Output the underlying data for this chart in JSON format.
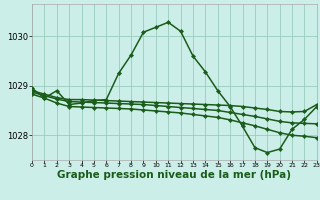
{
  "background_color": "#cceee8",
  "grid_color": "#99ccbb",
  "line_color": "#1a5c1a",
  "xlabel": "Graphe pression niveau de la mer (hPa)",
  "xlabel_fontsize": 7.5,
  "ylim": [
    1027.5,
    1030.65
  ],
  "xlim": [
    0,
    23
  ],
  "yticks": [
    1028,
    1029,
    1030
  ],
  "xticks": [
    0,
    1,
    2,
    3,
    4,
    5,
    6,
    7,
    8,
    9,
    10,
    11,
    12,
    13,
    14,
    15,
    16,
    17,
    18,
    19,
    20,
    21,
    22,
    23
  ],
  "series": [
    {
      "x": [
        0,
        1,
        2,
        3,
        4,
        5,
        6,
        7,
        8,
        9,
        10,
        11,
        12,
        13,
        14,
        15,
        16,
        17,
        18,
        19,
        20,
        21,
        22,
        23
      ],
      "y": [
        1028.95,
        1028.75,
        1028.9,
        1028.62,
        1028.65,
        1028.7,
        1028.72,
        1029.25,
        1029.62,
        1030.08,
        1030.18,
        1030.28,
        1030.1,
        1029.6,
        1029.28,
        1028.9,
        1028.58,
        1028.18,
        1027.75,
        1027.65,
        1027.72,
        1028.12,
        1028.32,
        1028.58
      ],
      "linewidth": 1.1,
      "markersize": 2.2
    },
    {
      "x": [
        0,
        1,
        2,
        3,
        4,
        5,
        6,
        7,
        8,
        9,
        10,
        11,
        12,
        13,
        14,
        15,
        16,
        17,
        18,
        19,
        20,
        21,
        22,
        23
      ],
      "y": [
        1028.9,
        1028.83,
        1028.76,
        1028.72,
        1028.72,
        1028.71,
        1028.7,
        1028.69,
        1028.68,
        1028.67,
        1028.66,
        1028.65,
        1028.64,
        1028.63,
        1028.62,
        1028.61,
        1028.6,
        1028.58,
        1028.55,
        1028.52,
        1028.48,
        1028.47,
        1028.48,
        1028.62
      ],
      "linewidth": 1.1,
      "markersize": 2.2
    },
    {
      "x": [
        0,
        1,
        2,
        3,
        4,
        5,
        6,
        7,
        8,
        9,
        10,
        11,
        12,
        13,
        14,
        15,
        16,
        17,
        18,
        19,
        20,
        21,
        22,
        23
      ],
      "y": [
        1028.87,
        1028.8,
        1028.73,
        1028.68,
        1028.67,
        1028.66,
        1028.65,
        1028.64,
        1028.63,
        1028.62,
        1028.6,
        1028.58,
        1028.56,
        1028.54,
        1028.52,
        1028.5,
        1028.46,
        1028.42,
        1028.38,
        1028.33,
        1028.28,
        1028.25,
        1028.24,
        1028.23
      ],
      "linewidth": 1.1,
      "markersize": 2.2
    },
    {
      "x": [
        0,
        1,
        2,
        3,
        4,
        5,
        6,
        7,
        8,
        9,
        10,
        11,
        12,
        13,
        14,
        15,
        16,
        17,
        18,
        19,
        20,
        21,
        22,
        23
      ],
      "y": [
        1028.83,
        1028.75,
        1028.65,
        1028.58,
        1028.57,
        1028.56,
        1028.55,
        1028.54,
        1028.53,
        1028.51,
        1028.49,
        1028.47,
        1028.45,
        1028.42,
        1028.39,
        1028.36,
        1028.31,
        1028.25,
        1028.19,
        1028.12,
        1028.05,
        1028.0,
        1027.98,
        1027.95
      ],
      "linewidth": 1.1,
      "markersize": 2.2
    }
  ]
}
